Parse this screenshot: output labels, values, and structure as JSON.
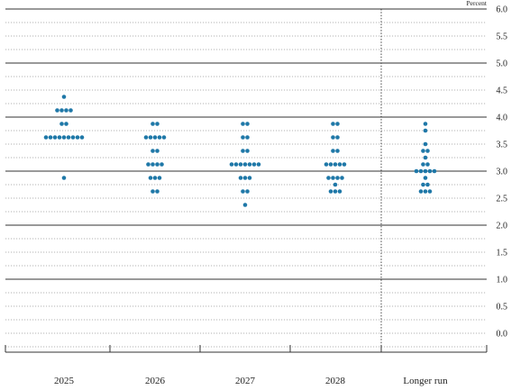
{
  "chart_data": {
    "type": "scatter",
    "subtype": "dot-plot",
    "title": "",
    "xlabel": "",
    "ylabel": "",
    "unit_label": "Percent",
    "categories": [
      "2025",
      "2026",
      "2027",
      "2028",
      "Longer run"
    ],
    "ylim": [
      -0.25,
      6.0
    ],
    "y_major_ticks": [
      0.0,
      0.5,
      1.0,
      1.5,
      2.0,
      2.5,
      3.0,
      3.5,
      4.0,
      4.5,
      5.0,
      5.5,
      6.0
    ],
    "y_tick_labels": [
      "0.0",
      "0.5",
      "1.0",
      "1.5",
      "2.0",
      "2.5",
      "3.0",
      "3.5",
      "4.0",
      "4.5",
      "5.0",
      "5.5",
      "6.0"
    ],
    "solid_gridlines": [
      1.0,
      2.0,
      3.0,
      4.0,
      5.0,
      6.0
    ],
    "minor_gridline_step": 0.25,
    "grid": true,
    "dot_color": "#1f78a8",
    "divider_between": [
      "2028",
      "Longer run"
    ],
    "series": [
      {
        "category": "2025",
        "points": [
          {
            "y": 4.375,
            "count": 1
          },
          {
            "y": 4.125,
            "count": 4
          },
          {
            "y": 3.875,
            "count": 2
          },
          {
            "y": 3.625,
            "count": 9
          },
          {
            "y": 2.875,
            "count": 1
          }
        ]
      },
      {
        "category": "2026",
        "points": [
          {
            "y": 3.875,
            "count": 2
          },
          {
            "y": 3.625,
            "count": 5
          },
          {
            "y": 3.375,
            "count": 2
          },
          {
            "y": 3.125,
            "count": 4
          },
          {
            "y": 2.875,
            "count": 3
          },
          {
            "y": 2.625,
            "count": 2
          }
        ]
      },
      {
        "category": "2027",
        "points": [
          {
            "y": 3.875,
            "count": 2
          },
          {
            "y": 3.625,
            "count": 2
          },
          {
            "y": 3.375,
            "count": 2
          },
          {
            "y": 3.125,
            "count": 7
          },
          {
            "y": 2.875,
            "count": 3
          },
          {
            "y": 2.625,
            "count": 2
          },
          {
            "y": 2.375,
            "count": 1
          }
        ]
      },
      {
        "category": "2028",
        "points": [
          {
            "y": 3.875,
            "count": 2
          },
          {
            "y": 3.625,
            "count": 2
          },
          {
            "y": 3.375,
            "count": 2
          },
          {
            "y": 3.125,
            "count": 5
          },
          {
            "y": 2.875,
            "count": 4
          },
          {
            "y": 2.75,
            "count": 1
          },
          {
            "y": 2.625,
            "count": 3
          }
        ]
      },
      {
        "category": "Longer run",
        "points": [
          {
            "y": 3.875,
            "count": 1
          },
          {
            "y": 3.75,
            "count": 1
          },
          {
            "y": 3.5,
            "count": 1
          },
          {
            "y": 3.375,
            "count": 2
          },
          {
            "y": 3.25,
            "count": 1
          },
          {
            "y": 3.125,
            "count": 2
          },
          {
            "y": 3.0,
            "count": 5
          },
          {
            "y": 2.875,
            "count": 1
          },
          {
            "y": 2.75,
            "count": 2
          },
          {
            "y": 2.625,
            "count": 3
          }
        ]
      }
    ]
  }
}
